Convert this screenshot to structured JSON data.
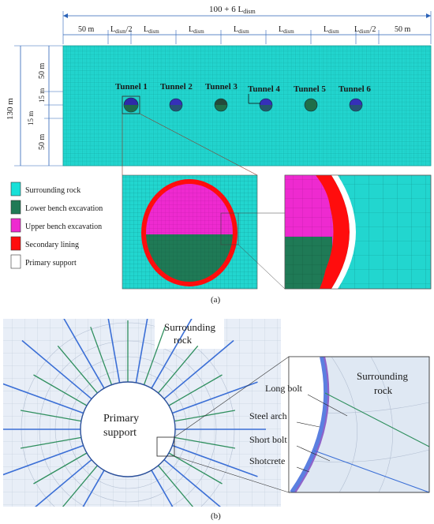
{
  "panel_a": {
    "total_width_label": "100 + 6 L",
    "total_width_sub": "dism",
    "seg_outer_left": "50 m",
    "seg_outer_right": "50 m",
    "seg_L": "L",
    "seg_L_sub": "dism",
    "seg_half_suffix": "/2",
    "height_total": "130 m",
    "h_top": "50 m",
    "h_mid1": "15 m",
    "h_mid2": "15 m",
    "h_bottom": "50 m",
    "tunnels": [
      "Tunnel 1",
      "Tunnel 2",
      "Tunnel 3",
      "Tunnel 4",
      "Tunnel 5",
      "Tunnel 6"
    ],
    "legend": [
      {
        "label": "Surrounding rock",
        "color": "#19e0d8"
      },
      {
        "label": "Lower bench excavation",
        "color": "#1f7a56"
      },
      {
        "label": "Upper bench excavation",
        "color": "#ee2ad0"
      },
      {
        "label": "Secondary lining",
        "color": "#ff0d0d"
      },
      {
        "label": "Primary support",
        "color": "#ffffff"
      }
    ],
    "caption": "(a)"
  },
  "panel_b": {
    "surrounding_rock_1": "Surrounding",
    "surrounding_rock_2": "rock",
    "primary_support_1": "Primary",
    "primary_support_2": "support",
    "zoom_rock_1": "Surrounding",
    "zoom_rock_2": "rock",
    "long_bolt": "Long bolt",
    "steel_arch": "Steel arch",
    "short_bolt": "Short bolt",
    "shotcrete": "Shotcrete",
    "caption": "(b)"
  },
  "colors": {
    "mesh": "#20d3cc",
    "mesh_line": "#0c8f8a",
    "upper_bench": "#ee2ad0",
    "lower_bench": "#1f7a56",
    "lining": "#ff0d0d",
    "bolt_long": "#3b6fd6",
    "bolt_short": "#2f8f5e",
    "steel_arch": "#8f63c9",
    "panel_b_bg": "#e7eef7",
    "dim_blue": "#2b63b8"
  }
}
